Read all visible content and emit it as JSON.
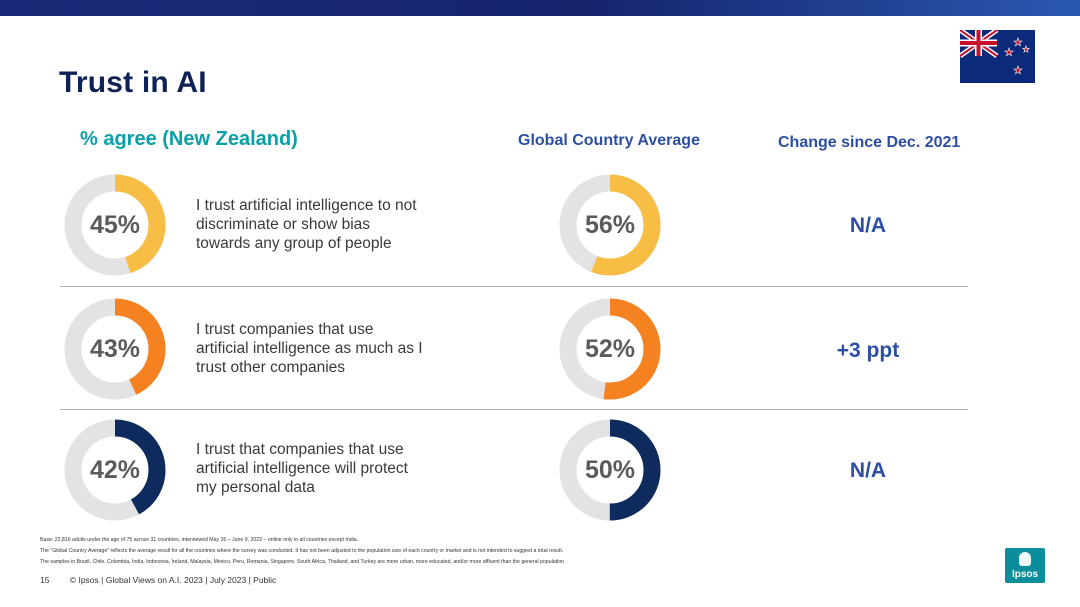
{
  "title": "Trust in AI",
  "headers": {
    "nz": "% agree (New Zealand)",
    "global": "Global Country Average",
    "change": "Change since Dec. 2021"
  },
  "rows": [
    {
      "nz_pct": "45%",
      "nz_value": 45,
      "statement": "I trust artificial intelligence to not discriminate or show bias towards any group of people",
      "global_pct": "56%",
      "global_value": 56,
      "change": "N/A",
      "color": "#f7bd45"
    },
    {
      "nz_pct": "43%",
      "nz_value": 43,
      "statement": "I trust companies that use artificial intelligence as much as I trust other companies",
      "global_pct": "52%",
      "global_value": 52,
      "change": "+3 ppt",
      "color": "#f58220"
    },
    {
      "nz_pct": "42%",
      "nz_value": 42,
      "statement": "I trust that companies that use artificial intelligence will protect my personal data",
      "global_pct": "50%",
      "global_value": 50,
      "change": "N/A",
      "color": "#0f2a5c"
    }
  ],
  "donut_track_color": "#e3e3e6",
  "footnotes": [
    "Base: 22,816 adults under the age of 75 across 31 countries, interviewed May 26 – June 9, 2023 – online only in all countries except India.",
    "The \"Global Country Average\" reflects the average result for all the countries where the survey was conducted. It has not been adjusted to the population size of each country or market and is not intended to suggest a total result.",
    "The samples in Brazil, Chile, Colombia, India, Indonesia, Ireland, Malaysia, Mexico, Peru, Romania, Singapore, South Africa, Thailand, and Turkey are more urban, more educated, and/or more affluent than the general population"
  ],
  "footer": {
    "page_number": "15",
    "text": "© Ipsos | Global Views on A.I. 2023 | July 2023 | Public"
  },
  "logo_text": "Ipsos",
  "flag_icon": "new-zealand-flag-icon"
}
